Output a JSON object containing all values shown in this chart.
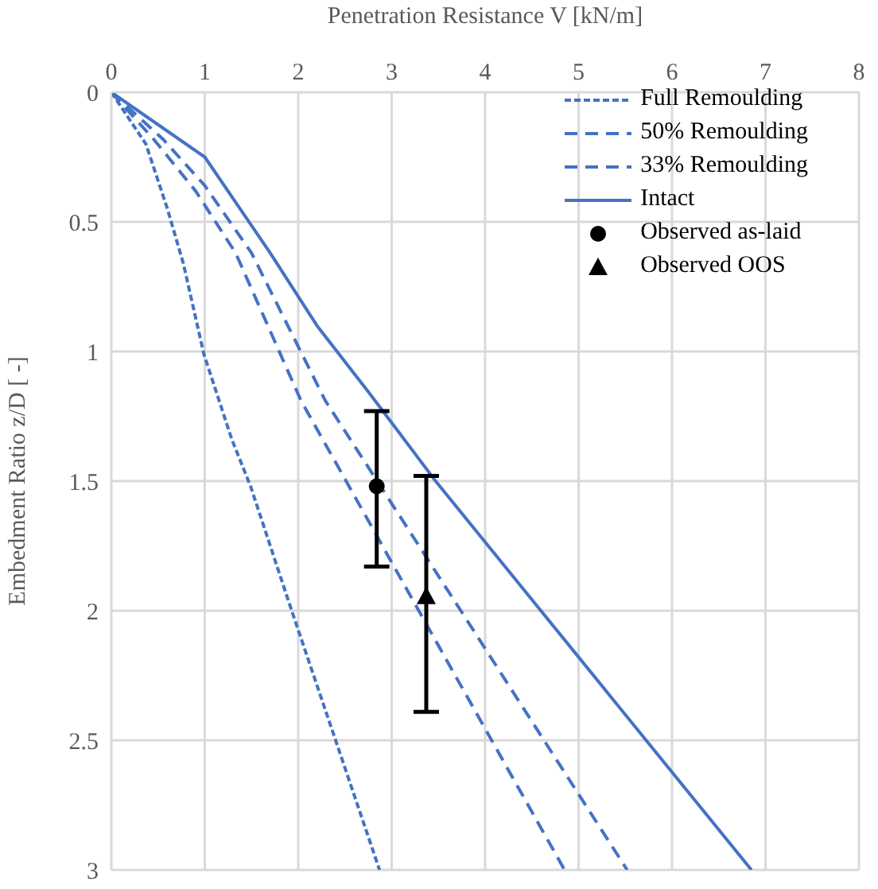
{
  "chart_data": {
    "type": "line",
    "xlabel": "Penetration Resistance V [kN/m]",
    "ylabel": "Embedment Ratio z/D [ -]",
    "xlim": [
      0,
      8
    ],
    "xticks": [
      0,
      1,
      2,
      3,
      4,
      5,
      6,
      7,
      8
    ],
    "ylim": [
      3,
      0
    ],
    "yticks": [
      0,
      0.5,
      1,
      1.5,
      2,
      2.5,
      3
    ],
    "grid": true,
    "legend": "top right",
    "series": [
      {
        "name": "Full Remoulding",
        "color": "#4472c4",
        "line_style": "dotted",
        "marker": "none",
        "x": [
          0,
          0.37,
          0.6,
          0.77,
          0.99,
          1.29,
          1.49,
          1.93,
          2.87
        ],
        "values": [
          0,
          0.2,
          0.45,
          0.66,
          1.01,
          1.34,
          1.52,
          2,
          3
        ]
      },
      {
        "name": "50% Remoulding",
        "color": "#4472c4",
        "line_style": "dashed",
        "marker": "none",
        "x": [
          0,
          0.45,
          0.9,
          1.33,
          2.03,
          3.29,
          4.85
        ],
        "values": [
          0,
          0.18,
          0.38,
          0.62,
          1.19,
          2,
          3
        ]
      },
      {
        "name": "33% Remoulding",
        "color": "#4472c4",
        "line_style": "dashed",
        "marker": "none",
        "x": [
          0,
          0.55,
          1,
          1.5,
          2.29,
          3.74,
          5.52
        ],
        "values": [
          0,
          0.18,
          0.36,
          0.62,
          1.19,
          2,
          3
        ]
      },
      {
        "name": "Intact",
        "color": "#4472c4",
        "line_style": "solid",
        "marker": "none",
        "x": [
          0,
          1,
          1.7,
          2.2,
          2.76,
          3.47,
          6.85
        ],
        "values": [
          0,
          0.25,
          0.62,
          0.9,
          1.16,
          1.5,
          3
        ]
      },
      {
        "name": "Observed as-laid",
        "type": "scatter",
        "color": "#000000",
        "marker": "circle",
        "x": [
          2.84
        ],
        "values": [
          1.52
        ],
        "errors": [
          [
            1.23,
            1.83
          ]
        ]
      },
      {
        "name": "Observed OOS",
        "type": "scatter",
        "color": "#000000",
        "marker": "triangle",
        "x": [
          3.37
        ],
        "values": [
          1.95
        ],
        "errors": [
          [
            1.48,
            2.39
          ]
        ]
      }
    ]
  }
}
